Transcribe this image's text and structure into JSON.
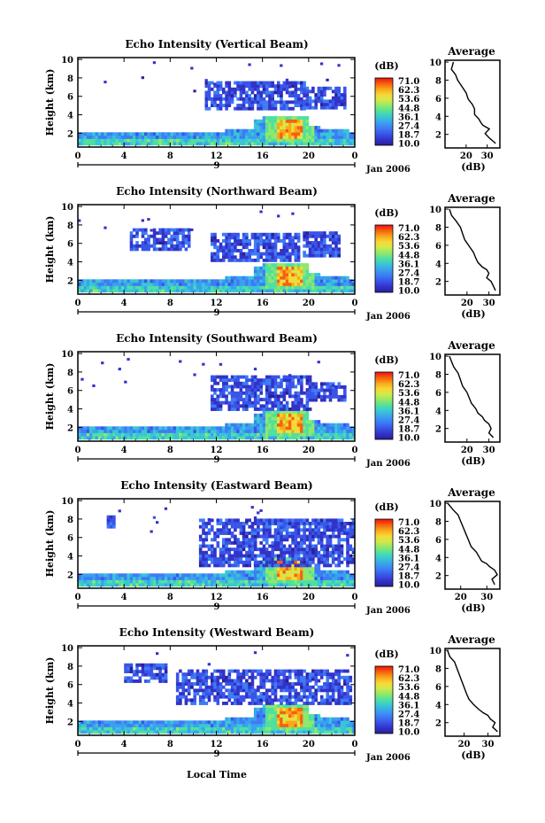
{
  "figure": {
    "xlabel": "Local Time",
    "date_label": "Jan 2006",
    "day_marker": "9",
    "cbar_unit": "(dB)",
    "avg_title": "Average",
    "avg_xlabel": "(dB)"
  },
  "colorscale": {
    "ticks": [
      "71.0",
      "62.3",
      "53.6",
      "44.8",
      "36.1",
      "27.4",
      "18.7",
      "10.0"
    ],
    "colors": [
      "#ef1010",
      "#f7600f",
      "#f9a81a",
      "#f8d838",
      "#cfea4a",
      "#8fe86a",
      "#4fe0a0",
      "#38c6d6",
      "#3aa0ef",
      "#3d7cf4",
      "#3a54e8",
      "#3232c8",
      "#28209a"
    ]
  },
  "chart_data": [
    {
      "type": "heatmap",
      "title": "Echo Intensity (Vertical Beam)",
      "ylabel": "Height (km)",
      "xlim": [
        0,
        24
      ],
      "ylim": [
        0.5,
        10.2
      ],
      "xticks": [
        "0",
        "4",
        "8",
        "12",
        "16",
        "20",
        "0"
      ],
      "yticks": [
        2,
        4,
        6,
        8,
        10
      ],
      "value_range": [
        10.0,
        71.0
      ],
      "average_profile": {
        "xticks": [
          20,
          30
        ],
        "xlim": [
          10,
          36
        ],
        "x": [
          14,
          13,
          15,
          16,
          18,
          20,
          21,
          23,
          24,
          24,
          26,
          27,
          28,
          31,
          29,
          31,
          34
        ],
        "y": [
          10,
          9.2,
          8.6,
          8.0,
          7.3,
          6.6,
          5.9,
          5.3,
          4.8,
          4.2,
          3.7,
          3.3,
          3.0,
          2.6,
          2.1,
          1.6,
          1.0
        ]
      }
    },
    {
      "type": "heatmap",
      "title": "Echo Intensity (Northward Beam)",
      "ylabel": "Height (km)",
      "xlim": [
        0,
        24
      ],
      "ylim": [
        0.5,
        10.2
      ],
      "xticks": [
        "0",
        "4",
        "8",
        "12",
        "16",
        "20",
        "0"
      ],
      "yticks": [
        2,
        4,
        6,
        8,
        10
      ],
      "value_range": [
        10.0,
        71.0
      ],
      "average_profile": {
        "xticks": [
          20,
          30
        ],
        "xlim": [
          10,
          35
        ],
        "x": [
          12,
          13,
          15,
          17,
          18,
          19,
          21,
          23,
          24,
          25,
          27,
          29,
          30,
          29,
          31,
          32,
          33
        ],
        "y": [
          10,
          9.3,
          8.7,
          8.0,
          7.3,
          6.6,
          5.9,
          5.2,
          4.6,
          4.1,
          3.6,
          3.3,
          2.9,
          2.4,
          2.0,
          1.5,
          1.0
        ]
      }
    },
    {
      "type": "heatmap",
      "title": "Echo Intensity (Southward Beam)",
      "ylabel": "Height (km)",
      "xlim": [
        0,
        24
      ],
      "ylim": [
        0.5,
        10.2
      ],
      "xticks": [
        "0",
        "4",
        "8",
        "12",
        "16",
        "20",
        "0"
      ],
      "yticks": [
        2,
        4,
        6,
        8,
        10
      ],
      "value_range": [
        10.0,
        71.0
      ],
      "average_profile": {
        "xticks": [
          20,
          30
        ],
        "xlim": [
          10,
          35
        ],
        "x": [
          12,
          13,
          14,
          16,
          17,
          18,
          20,
          21,
          22,
          24,
          25,
          27,
          28,
          30,
          31,
          30,
          32
        ],
        "y": [
          10,
          9.4,
          8.8,
          8.1,
          7.4,
          6.7,
          6.0,
          5.4,
          4.8,
          4.2,
          3.7,
          3.3,
          2.9,
          2.5,
          2.0,
          1.5,
          1.0
        ]
      }
    },
    {
      "type": "heatmap",
      "title": "Echo Intensity (Eastward Beam)",
      "ylabel": "Height (km)",
      "xlim": [
        0,
        24
      ],
      "ylim": [
        0.5,
        10.2
      ],
      "xticks": [
        "0",
        "4",
        "8",
        "12",
        "16",
        "20",
        "0"
      ],
      "yticks": [
        2,
        4,
        6,
        8,
        10
      ],
      "value_range": [
        10.0,
        71.0
      ],
      "average_profile": {
        "xticks": [
          20,
          30
        ],
        "xlim": [
          14,
          35
        ],
        "x": [
          15,
          17,
          19,
          20,
          21,
          22,
          23,
          24,
          26,
          27,
          28,
          30,
          31,
          33,
          34,
          32,
          33
        ],
        "y": [
          10,
          9.3,
          8.7,
          8.0,
          7.3,
          6.6,
          5.9,
          5.2,
          4.6,
          4.1,
          3.6,
          3.3,
          3.0,
          2.6,
          2.1,
          1.6,
          1.0
        ]
      }
    },
    {
      "type": "heatmap",
      "title": "Echo Intensity (Westward Beam)",
      "ylabel": "Height (km)",
      "xlim": [
        0,
        24
      ],
      "ylim": [
        0.5,
        10.2
      ],
      "xticks": [
        "0",
        "4",
        "8",
        "12",
        "16",
        "20",
        "0"
      ],
      "yticks": [
        2,
        4,
        6,
        8,
        10
      ],
      "value_range": [
        10.0,
        71.0
      ],
      "average_profile": {
        "xticks": [
          20,
          30
        ],
        "xlim": [
          12,
          35
        ],
        "x": [
          13,
          14,
          16,
          17,
          18,
          19,
          20,
          21,
          22,
          24,
          26,
          28,
          30,
          31,
          33,
          32,
          34
        ],
        "y": [
          10,
          9.3,
          8.7,
          8.0,
          7.3,
          6.6,
          5.9,
          5.2,
          4.6,
          4.0,
          3.5,
          3.1,
          2.8,
          2.4,
          2.0,
          1.5,
          1.0
        ]
      }
    }
  ]
}
